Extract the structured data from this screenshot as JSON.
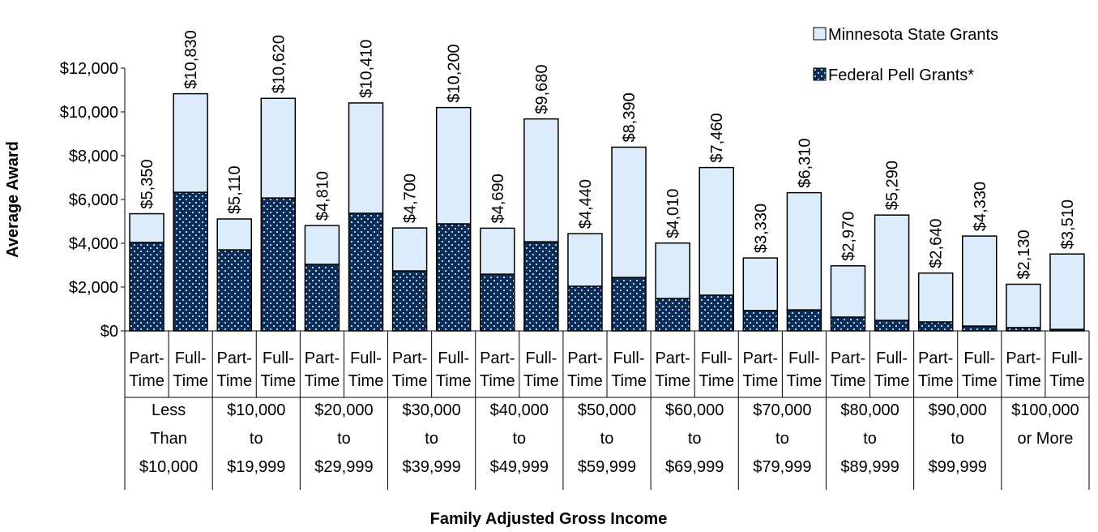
{
  "chart_data": {
    "type": "stacked_bar",
    "x_label": "Family Adjusted Gross Income",
    "y_label": "Average Award",
    "categories": [
      "Part-Time",
      "Full-Time",
      "Part-Time",
      "Full-Time",
      "Part-Time",
      "Full-Time",
      "Part-Time",
      "Full-Time",
      "Part-Time",
      "Full-Time",
      "Part-Time",
      "Full-Time",
      "Part-Time",
      "Full-Time",
      "Part-Time",
      "Full-Time",
      "Part-Time",
      "Full-Time",
      "Part-Time",
      "Full-Time",
      "Part-Time",
      "Full-Time"
    ],
    "groups": [
      [
        "Less",
        "Than",
        "$10,000"
      ],
      [
        "$10,000",
        "to",
        "$19,999"
      ],
      [
        "$20,000",
        "to",
        "$29,999"
      ],
      [
        "$30,000",
        "to",
        "$39,999"
      ],
      [
        "$40,000",
        "to",
        "$49,999"
      ],
      [
        "$50,000",
        "to",
        "$59,999"
      ],
      [
        "$60,000",
        "to",
        "$69,999"
      ],
      [
        "$70,000",
        "to",
        "$79,999"
      ],
      [
        "$80,000",
        "to",
        "$89,999"
      ],
      [
        "$90,000",
        "to",
        "$99,999"
      ],
      [
        "$100,000",
        "or More"
      ]
    ],
    "series": [
      {
        "name": "Federal Pell Grants*",
        "color": "#0b2f5a",
        "pattern": "dots",
        "values": [
          4040,
          6330,
          3700,
          6070,
          3040,
          5370,
          2740,
          4890,
          2590,
          4070,
          2040,
          2440,
          1480,
          1630,
          930,
          960,
          630,
          480,
          410,
          220,
          150,
          70
        ]
      },
      {
        "name": "Minnesota State Grants",
        "color": "#dcecfb",
        "values": [
          1310,
          4500,
          1410,
          4550,
          1770,
          5040,
          1960,
          5310,
          2100,
          5610,
          2400,
          5950,
          2530,
          5830,
          2400,
          5350,
          2340,
          4810,
          2230,
          4110,
          1980,
          3440
        ]
      }
    ],
    "totals": [
      5350,
      10830,
      5110,
      10620,
      4810,
      10410,
      4700,
      10200,
      4690,
      9680,
      4440,
      8390,
      4010,
      7460,
      3330,
      6310,
      2970,
      5290,
      2640,
      4330,
      2130,
      3510
    ],
    "total_labels": [
      "$5,350",
      "$10,830",
      "$5,110",
      "$10,620",
      "$4,810",
      "$10,410",
      "$4,700",
      "$10,200",
      "$4,690",
      "$9,680",
      "$4,440",
      "$8,390",
      "$4,010",
      "$7,460",
      "$3,330",
      "$6,310",
      "$2,970",
      "$5,290",
      "$2,640",
      "$4,330",
      "$2,130",
      "$3,510"
    ],
    "ylim": [
      0,
      12000
    ],
    "yticks": [
      {
        "value": 0,
        "label": "$0"
      },
      {
        "value": 2000,
        "label": "$2,000"
      },
      {
        "value": 4000,
        "label": "$4,000"
      },
      {
        "value": 6000,
        "label": "$6,000"
      },
      {
        "value": 8000,
        "label": "$8,000"
      },
      {
        "value": 10000,
        "label": "$10,000"
      },
      {
        "value": 12000,
        "label": "$12,000"
      }
    ],
    "legend": "top-right",
    "legend_order": [
      1,
      0
    ]
  }
}
